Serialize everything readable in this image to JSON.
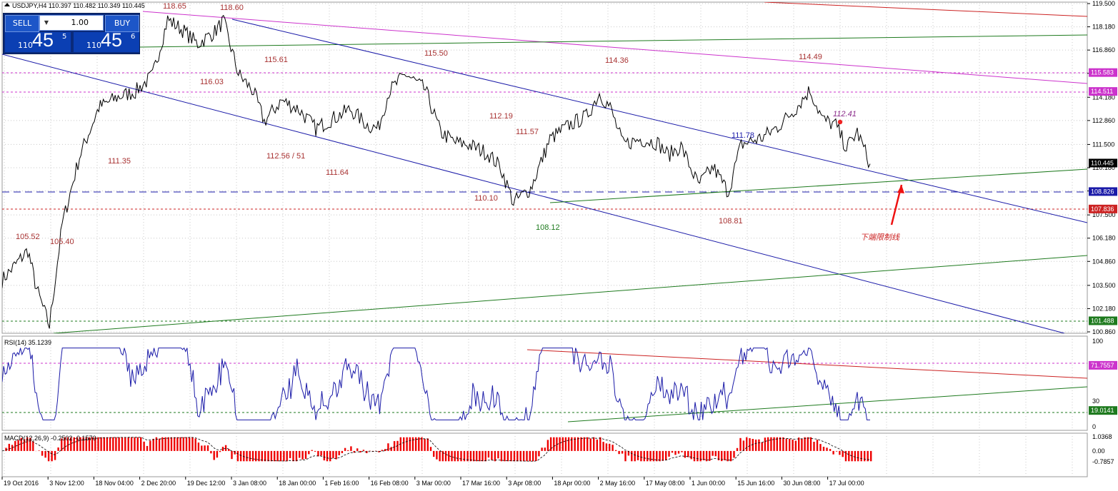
{
  "header": {
    "title": "USDJPY,H4  110.397 110.482 110.349 110.445"
  },
  "trade_panel": {
    "sell_label": "SELL",
    "buy_label": "BUY",
    "lot": "1.00",
    "sell_prefix": "110",
    "sell_big": "45",
    "sell_sup": "5",
    "buy_prefix": "110",
    "buy_big": "45",
    "buy_sup": "6"
  },
  "main_axis": {
    "ticks": [
      "119.500",
      "118.180",
      "116.860",
      "115.540",
      "114.180",
      "112.860",
      "111.500",
      "110.180",
      "108.860",
      "107.500",
      "106.180",
      "104.860",
      "103.500",
      "102.180",
      "100.860"
    ],
    "tags": [
      {
        "text": "115.583",
        "color": "#cc33cc",
        "value": 115.583
      },
      {
        "text": "114.511",
        "color": "#cc33cc",
        "value": 114.511
      },
      {
        "text": "110.445",
        "color": "#000000",
        "value": 110.445
      },
      {
        "text": "108.826",
        "color": "#1a1aa8",
        "value": 108.826
      },
      {
        "text": "107.836",
        "color": "#cc2222",
        "value": 107.836
      },
      {
        "text": "101.488",
        "color": "#1e7a1e",
        "value": 101.488
      }
    ]
  },
  "annotations": [
    {
      "text": "118.65",
      "color": "#a83232"
    },
    {
      "text": "118.60",
      "color": "#a83232"
    },
    {
      "text": "115.61",
      "color": "#a83232"
    },
    {
      "text": "116.03",
      "color": "#a83232"
    },
    {
      "text": "115.50",
      "color": "#a83232"
    },
    {
      "text": "114.36",
      "color": "#a83232"
    },
    {
      "text": "114.49",
      "color": "#a83232"
    },
    {
      "text": "112.41",
      "color": "#8a2a8a"
    },
    {
      "text": "112.19",
      "color": "#a83232"
    },
    {
      "text": "111.57",
      "color": "#a83232"
    },
    {
      "text": "111.78",
      "color": "#1a1aa8"
    },
    {
      "text": "111.35",
      "color": "#a83232"
    },
    {
      "text": "112.56 / 51",
      "color": "#a83232"
    },
    {
      "text": "111.64",
      "color": "#a83232"
    },
    {
      "text": "110.10",
      "color": "#a83232"
    },
    {
      "text": "108.81",
      "color": "#a83232"
    },
    {
      "text": "108.12",
      "color": "#1e7a1e"
    },
    {
      "text": "105.52",
      "color": "#a83232"
    },
    {
      "text": "105.40",
      "color": "#a83232"
    },
    {
      "text": "下端限制线",
      "color": "#cc2222"
    }
  ],
  "rsi": {
    "label": "RSI(14) 35.1239",
    "ticks": [
      "100",
      "30",
      "0"
    ],
    "tags": [
      {
        "text": "71.7557",
        "color": "#cc33cc"
      },
      {
        "text": "19.0141",
        "color": "#1e7a1e"
      }
    ]
  },
  "macd": {
    "label": "MACD(12,26,9) -0.2502 -0.1570",
    "ticks": [
      "1.0368",
      "0.00",
      "-0.7857"
    ]
  },
  "time_axis": {
    "labels": [
      "19 Oct 2016",
      "3 Nov 12:00",
      "18 Nov 04:00",
      "2 Dec 20:00",
      "19 Dec 12:00",
      "3 Jan 08:00",
      "18 Jan 00:00",
      "1 Feb 16:00",
      "16 Feb 08:00",
      "3 Mar 00:00",
      "17 Mar 16:00",
      "3 Apr 08:00",
      "18 Apr 00:00",
      "2 May 16:00",
      "17 May 08:00",
      "1 Jun 00:00",
      "15 Jun 16:00",
      "30 Jun 08:00",
      "17 Jul 00:00"
    ]
  },
  "colors": {
    "candles": "#000000",
    "rsi_line": "#1a1aa8",
    "macd_hist": "#ee0000",
    "grid": "#c8c8c8"
  },
  "chart_data": [
    {
      "type": "line",
      "title": "USDJPY,H4",
      "ylim": [
        100.5,
        119.8
      ],
      "x": [
        "19 Oct 2016",
        "3 Nov 12:00",
        "18 Nov 04:00",
        "2 Dec 20:00",
        "19 Dec 12:00",
        "3 Jan 08:00",
        "18 Jan 00:00",
        "1 Feb 16:00",
        "16 Feb 08:00",
        "3 Mar 00:00",
        "17 Mar 16:00",
        "3 Apr 08:00",
        "18 Apr 00:00",
        "2 May 16:00",
        "17 May 08:00",
        "1 Jun 00:00",
        "15 Jun 16:00",
        "30 Jun 08:00",
        "17 Jul 00:00"
      ],
      "anchors": [
        [
          0,
          103.8
        ],
        [
          0.5,
          104.5
        ],
        [
          1.2,
          105.5
        ],
        [
          1.6,
          103.3
        ],
        [
          2.2,
          101.2
        ],
        [
          2.8,
          107.0
        ],
        [
          3.6,
          110.8
        ],
        [
          4.5,
          113.6
        ],
        [
          5.4,
          114.2
        ],
        [
          6.2,
          114.5
        ],
        [
          7.0,
          115.4
        ],
        [
          7.7,
          118.6
        ],
        [
          8.4,
          118.0
        ],
        [
          9.1,
          117.2
        ],
        [
          9.9,
          117.9
        ],
        [
          10.3,
          118.5
        ],
        [
          11.0,
          115.5
        ],
        [
          11.7,
          114.5
        ],
        [
          12.2,
          112.8
        ],
        [
          13.0,
          114.0
        ],
        [
          13.8,
          113.5
        ],
        [
          14.6,
          112.4
        ],
        [
          15.3,
          112.9
        ],
        [
          16.2,
          113.5
        ],
        [
          17.0,
          112.6
        ],
        [
          17.5,
          112.4
        ],
        [
          18.0,
          114.5
        ],
        [
          18.8,
          115.5
        ],
        [
          19.7,
          114.6
        ],
        [
          20.4,
          112.2
        ],
        [
          21.1,
          111.6
        ],
        [
          21.7,
          111.5
        ],
        [
          22.6,
          111.0
        ],
        [
          23.2,
          110.2
        ],
        [
          23.8,
          108.2
        ],
        [
          24.6,
          109.0
        ],
        [
          25.5,
          111.8
        ],
        [
          26.4,
          112.6
        ],
        [
          27.2,
          113.1
        ],
        [
          27.8,
          114.4
        ],
        [
          28.3,
          113.6
        ],
        [
          28.9,
          111.5
        ],
        [
          29.7,
          111.8
        ],
        [
          30.5,
          111.6
        ],
        [
          31.0,
          110.9
        ],
        [
          31.6,
          111.4
        ],
        [
          32.4,
          109.2
        ],
        [
          33.1,
          110.2
        ],
        [
          33.8,
          108.8
        ],
        [
          34.4,
          111.5
        ],
        [
          35.4,
          111.9
        ],
        [
          36.1,
          112.5
        ],
        [
          36.9,
          113.5
        ],
        [
          37.6,
          114.6
        ],
        [
          38.2,
          112.9
        ],
        [
          38.8,
          112.6
        ],
        [
          39.3,
          111.3
        ],
        [
          39.8,
          112.2
        ],
        [
          40.4,
          110.4
        ]
      ]
    },
    {
      "type": "line",
      "title": "RSI(14)",
      "ylim": [
        0,
        100
      ],
      "last": 35.1239
    },
    {
      "type": "bar",
      "title": "MACD(12,26,9)",
      "ylim": [
        -0.7857,
        1.0368
      ],
      "last": [
        -0.2502,
        -0.157
      ]
    }
  ]
}
